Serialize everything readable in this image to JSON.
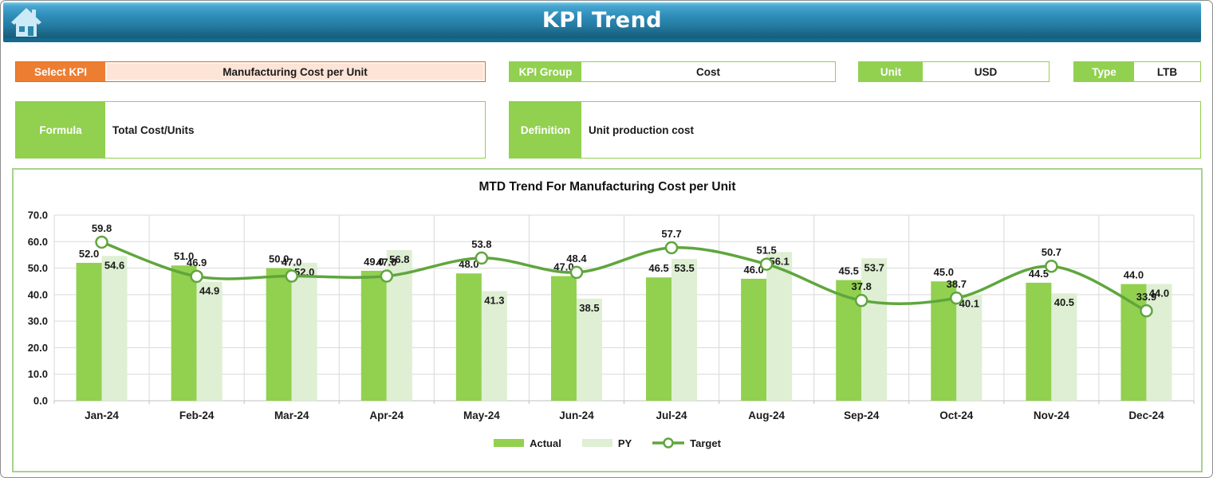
{
  "header": {
    "title": "KPI Trend"
  },
  "fields": {
    "select_kpi": {
      "label": "Select KPI",
      "value": "Manufacturing Cost per Unit"
    },
    "kpi_group": {
      "label": "KPI Group",
      "value": "Cost"
    },
    "unit": {
      "label": "Unit",
      "value": "USD"
    },
    "type": {
      "label": "Type",
      "value": "LTB"
    },
    "formula": {
      "label": "Formula",
      "value": "Total Cost/Units"
    },
    "definition": {
      "label": "Definition",
      "value": "Unit production cost"
    }
  },
  "chart_data": {
    "type": "bar",
    "title": "MTD Trend For Manufacturing Cost per Unit",
    "categories": [
      "Jan-24",
      "Feb-24",
      "Mar-24",
      "Apr-24",
      "May-24",
      "Jun-24",
      "Jul-24",
      "Aug-24",
      "Sep-24",
      "Oct-24",
      "Nov-24",
      "Dec-24"
    ],
    "series": [
      {
        "name": "Actual",
        "type": "bar",
        "color": "#92D050",
        "values": [
          52.0,
          51.0,
          50.0,
          49.0,
          48.0,
          47.0,
          46.5,
          46.0,
          45.5,
          45.0,
          44.5,
          44.0
        ]
      },
      {
        "name": "PY",
        "type": "bar",
        "color": "#DEEFD3",
        "values": [
          54.6,
          44.9,
          52.0,
          56.8,
          41.3,
          38.5,
          53.5,
          56.1,
          53.7,
          40.1,
          40.5,
          44.0
        ]
      },
      {
        "name": "Target",
        "type": "line",
        "color": "#5FA63D",
        "values": [
          59.8,
          46.9,
          47.0,
          47.0,
          53.8,
          48.4,
          57.7,
          51.5,
          37.8,
          38.7,
          50.7,
          33.9
        ]
      }
    ],
    "ylim": [
      0,
      70
    ],
    "ytick_step": 10,
    "ytick_labels": [
      "0.0",
      "10.0",
      "20.0",
      "30.0",
      "40.0",
      "50.0",
      "60.0",
      "70.0"
    ],
    "grid": true,
    "legend_position": "bottom",
    "label_decimals": 1
  },
  "colors": {
    "accent_green": "#92D050",
    "accent_orange": "#ED7D31",
    "peach_fill": "#FCE4D6",
    "panel_border": "#A9D18E",
    "grid_line": "#D9D9D9",
    "axis_line": "#BFBFBF",
    "header_blue_dark": "#146b8d",
    "label_text": "#1a1a1a"
  },
  "icons": {
    "home": "home-icon"
  }
}
